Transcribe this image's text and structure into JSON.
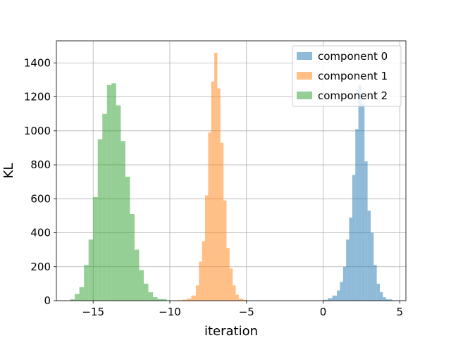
{
  "chart_data": {
    "type": "bar",
    "subtype": "histogram",
    "title": "",
    "xlabel": "iteration",
    "ylabel": "KL",
    "xlim": [
      -17.4,
      5.4
    ],
    "ylim": [
      0,
      1530
    ],
    "xticks": [
      -15,
      -10,
      -5,
      0,
      5
    ],
    "xtick_labels": [
      "−15",
      "−10",
      "−5",
      "0",
      "5"
    ],
    "yticks": [
      0,
      200,
      400,
      600,
      800,
      1000,
      1200,
      1400
    ],
    "ytick_labels": [
      "0",
      "200",
      "400",
      "600",
      "800",
      "1000",
      "1200",
      "1400"
    ],
    "grid": true,
    "legend_position": "upper right",
    "series": [
      {
        "name": "component 0",
        "color": "#1f77b4",
        "alpha": 0.5,
        "bins": [
          {
            "x0": 0.0,
            "x1": 0.3,
            "y": 5
          },
          {
            "x0": 0.3,
            "x1": 0.6,
            "y": 15
          },
          {
            "x0": 0.6,
            "x1": 0.9,
            "y": 30
          },
          {
            "x0": 0.9,
            "x1": 1.1,
            "y": 60
          },
          {
            "x0": 1.1,
            "x1": 1.3,
            "y": 110
          },
          {
            "x0": 1.3,
            "x1": 1.5,
            "y": 200
          },
          {
            "x0": 1.5,
            "x1": 1.7,
            "y": 360
          },
          {
            "x0": 1.7,
            "x1": 1.9,
            "y": 490
          },
          {
            "x0": 1.9,
            "x1": 2.1,
            "y": 740
          },
          {
            "x0": 2.1,
            "x1": 2.3,
            "y": 1010
          },
          {
            "x0": 2.3,
            "x1": 2.5,
            "y": 1270
          },
          {
            "x0": 2.5,
            "x1": 2.7,
            "y": 1160
          },
          {
            "x0": 2.7,
            "x1": 2.9,
            "y": 820
          },
          {
            "x0": 2.9,
            "x1": 3.1,
            "y": 530
          },
          {
            "x0": 3.1,
            "x1": 3.3,
            "y": 400
          },
          {
            "x0": 3.3,
            "x1": 3.5,
            "y": 210
          },
          {
            "x0": 3.5,
            "x1": 3.7,
            "y": 100
          },
          {
            "x0": 3.7,
            "x1": 3.9,
            "y": 50
          },
          {
            "x0": 3.9,
            "x1": 4.1,
            "y": 20
          },
          {
            "x0": 4.1,
            "x1": 4.5,
            "y": 8
          }
        ]
      },
      {
        "name": "component 1",
        "color": "#ff7f0e",
        "alpha": 0.5,
        "bins": [
          {
            "x0": -9.5,
            "x1": -9.2,
            "y": 3
          },
          {
            "x0": -9.2,
            "x1": -8.9,
            "y": 6
          },
          {
            "x0": -8.9,
            "x1": -8.6,
            "y": 12
          },
          {
            "x0": -8.6,
            "x1": -8.3,
            "y": 30
          },
          {
            "x0": -8.3,
            "x1": -8.1,
            "y": 90
          },
          {
            "x0": -8.1,
            "x1": -7.9,
            "y": 230
          },
          {
            "x0": -7.9,
            "x1": -7.7,
            "y": 350
          },
          {
            "x0": -7.7,
            "x1": -7.5,
            "y": 620
          },
          {
            "x0": -7.5,
            "x1": -7.3,
            "y": 990
          },
          {
            "x0": -7.3,
            "x1": -7.1,
            "y": 1290
          },
          {
            "x0": -7.1,
            "x1": -6.9,
            "y": 1460
          },
          {
            "x0": -6.9,
            "x1": -6.7,
            "y": 1250
          },
          {
            "x0": -6.7,
            "x1": -6.5,
            "y": 930
          },
          {
            "x0": -6.5,
            "x1": -6.3,
            "y": 590
          },
          {
            "x0": -6.3,
            "x1": -6.1,
            "y": 310
          },
          {
            "x0": -6.1,
            "x1": -5.9,
            "y": 190
          },
          {
            "x0": -5.9,
            "x1": -5.7,
            "y": 90
          },
          {
            "x0": -5.7,
            "x1": -5.5,
            "y": 35
          },
          {
            "x0": -5.5,
            "x1": -5.2,
            "y": 12
          },
          {
            "x0": -5.2,
            "x1": -4.9,
            "y": 4
          }
        ]
      },
      {
        "name": "component 2",
        "color": "#2ca02c",
        "alpha": 0.5,
        "bins": [
          {
            "x0": -16.5,
            "x1": -16.2,
            "y": 8
          },
          {
            "x0": -16.2,
            "x1": -15.9,
            "y": 40
          },
          {
            "x0": -15.9,
            "x1": -15.6,
            "y": 80
          },
          {
            "x0": -15.6,
            "x1": -15.3,
            "y": 210
          },
          {
            "x0": -15.3,
            "x1": -15.0,
            "y": 360
          },
          {
            "x0": -15.0,
            "x1": -14.7,
            "y": 610
          },
          {
            "x0": -14.7,
            "x1": -14.4,
            "y": 950
          },
          {
            "x0": -14.4,
            "x1": -14.1,
            "y": 1100
          },
          {
            "x0": -14.1,
            "x1": -13.8,
            "y": 1270
          },
          {
            "x0": -13.8,
            "x1": -13.5,
            "y": 1280
          },
          {
            "x0": -13.5,
            "x1": -13.2,
            "y": 1150
          },
          {
            "x0": -13.2,
            "x1": -12.9,
            "y": 940
          },
          {
            "x0": -12.9,
            "x1": -12.6,
            "y": 730
          },
          {
            "x0": -12.6,
            "x1": -12.3,
            "y": 510
          },
          {
            "x0": -12.3,
            "x1": -12.0,
            "y": 300
          },
          {
            "x0": -12.0,
            "x1": -11.7,
            "y": 180
          },
          {
            "x0": -11.7,
            "x1": -11.4,
            "y": 100
          },
          {
            "x0": -11.4,
            "x1": -11.1,
            "y": 50
          },
          {
            "x0": -11.1,
            "x1": -10.8,
            "y": 20
          },
          {
            "x0": -10.8,
            "x1": -10.2,
            "y": 10
          }
        ]
      }
    ]
  }
}
